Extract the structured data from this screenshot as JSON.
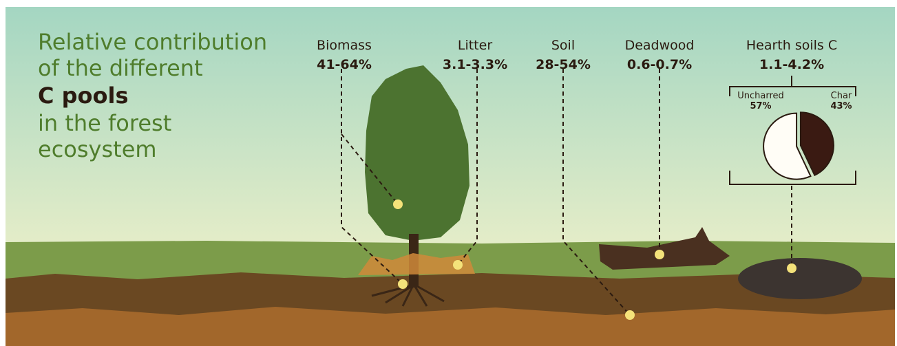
{
  "title": {
    "lines": [
      "Relative contribution",
      "of the different",
      "C pools",
      "in the forest",
      "ecosystem"
    ]
  },
  "pools": [
    {
      "name": "Biomass",
      "range": "41-64%"
    },
    {
      "name": "Litter",
      "range": "3.1-3.3%"
    },
    {
      "name": "Soil",
      "range": "28-54%"
    },
    {
      "name": "Deadwood",
      "range": "0.6-0.7%"
    },
    {
      "name": "Hearth soils C",
      "range": "1.1-4.2%"
    }
  ],
  "hearth_pie": {
    "slices": [
      {
        "name": "Uncharred",
        "value": 57,
        "label": "57%"
      },
      {
        "name": "Char",
        "value": 43,
        "label": "43%"
      }
    ]
  }
}
